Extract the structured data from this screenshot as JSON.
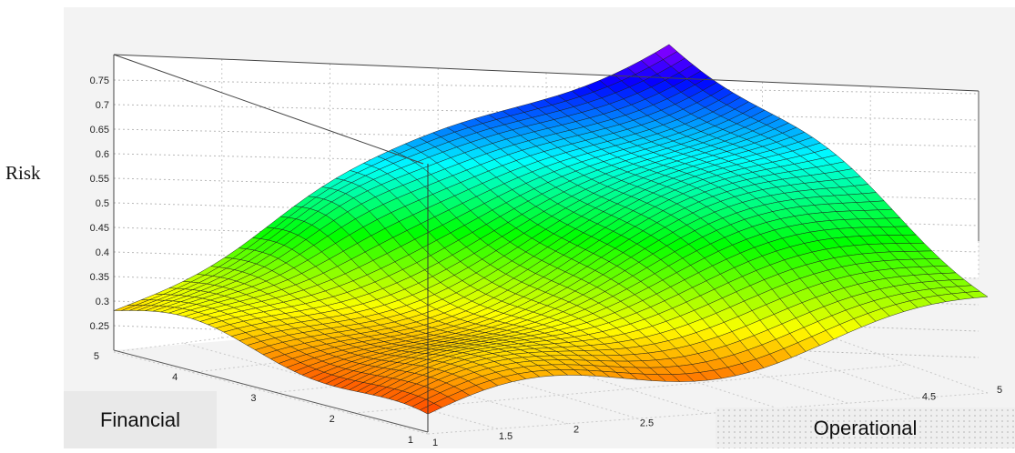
{
  "chart_data": {
    "type": "surface",
    "zlabel": "Risk",
    "ylabel": "Financial",
    "xlabel": "Operational",
    "z_ticks": [
      "0.25",
      "0.3",
      "0.35",
      "0.4",
      "0.45",
      "0.5",
      "0.55",
      "0.6",
      "0.65",
      "0.7",
      "0.75"
    ],
    "financial_ticks": [
      "1",
      "2",
      "3",
      "4",
      "5"
    ],
    "operational_ticks": [
      "1",
      "1.5",
      "2",
      "2.5",
      "4.5",
      "5"
    ],
    "xlim": [
      1,
      5
    ],
    "ylim": [
      1,
      5
    ],
    "zlim": [
      0.25,
      0.8
    ],
    "colormap": [
      "#ff0000",
      "#ffff00",
      "#00ff00",
      "#00ffff",
      "#0000ff",
      "#ff00ff"
    ],
    "grid": true,
    "surface_samples": [
      {
        "operational": 1,
        "financial": 1,
        "risk": 0.23
      },
      {
        "operational": 1,
        "financial": 5,
        "risk": 0.33
      },
      {
        "operational": 5,
        "financial": 1,
        "risk": 0.44
      },
      {
        "operational": 5,
        "financial": 5,
        "risk": 0.8
      }
    ]
  }
}
